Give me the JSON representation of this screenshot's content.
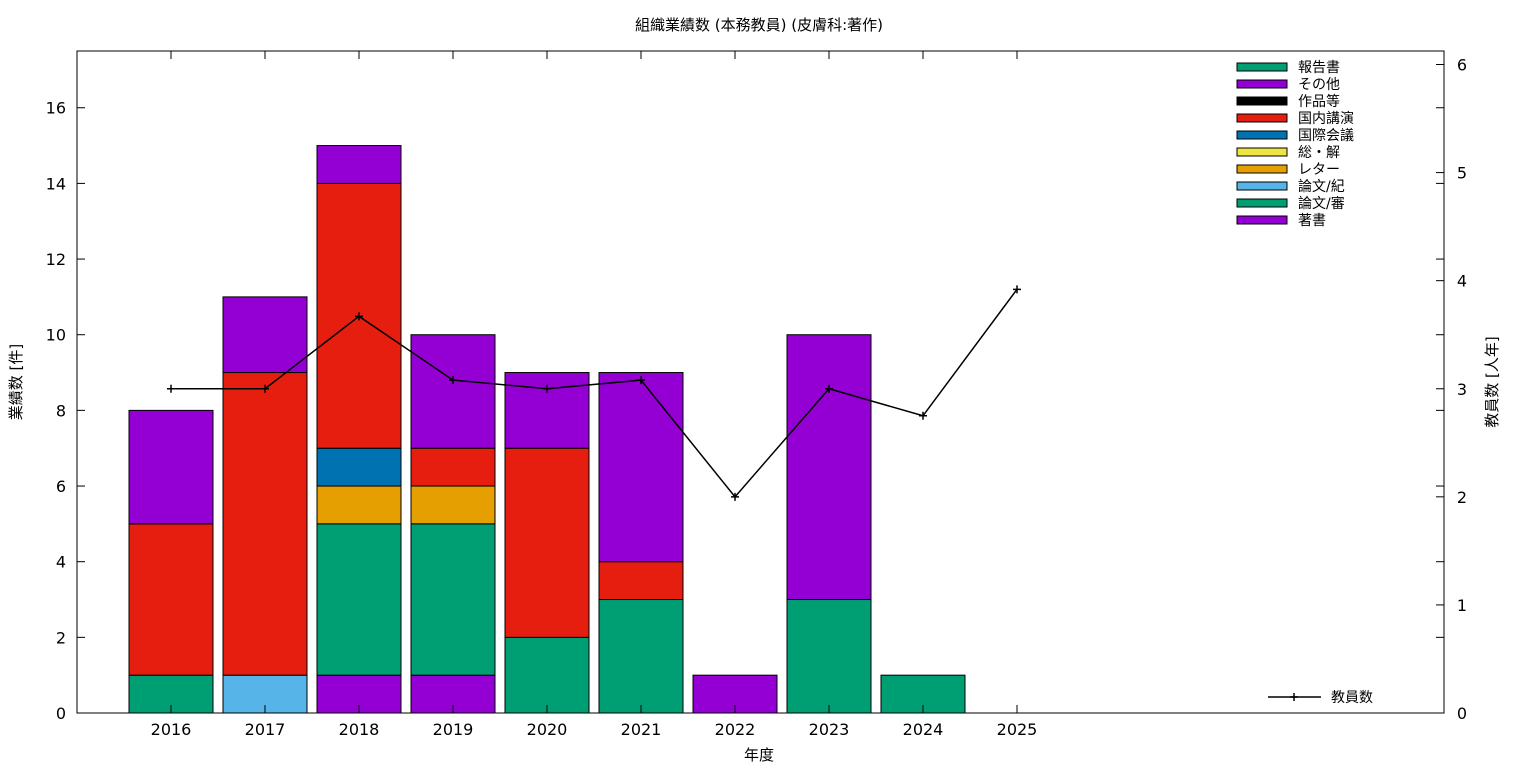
{
  "chart_data": {
    "type": "bar",
    "title": "組織業績数 (本務教員) (皮膚科:著作)",
    "xlabel": "年度",
    "ylabel": "業績数 [件]",
    "y2label": "教員数 [人年]",
    "ylim": [
      0,
      17.5
    ],
    "y2lim": [
      0,
      6.125
    ],
    "yticks": [
      0,
      2,
      4,
      6,
      8,
      10,
      12,
      14,
      16
    ],
    "y2ticks": [
      0,
      1,
      2,
      3,
      4,
      5,
      6
    ],
    "categories": [
      "2016",
      "2017",
      "2018",
      "2019",
      "2020",
      "2021",
      "2022",
      "2023",
      "2024",
      "2025"
    ],
    "stacked": true,
    "grid": false,
    "legend_position": "top-right",
    "series": [
      {
        "name": "著書",
        "color": "#9400d3",
        "values": [
          0,
          0,
          1,
          1,
          0,
          0,
          1,
          0,
          0,
          0
        ]
      },
      {
        "name": "論文/審",
        "color": "#009e73",
        "values": [
          1,
          0,
          4,
          4,
          2,
          3,
          0,
          3,
          1,
          0
        ]
      },
      {
        "name": "論文/紀",
        "color": "#56b4e9",
        "values": [
          0,
          1,
          0,
          0,
          0,
          0,
          0,
          0,
          0,
          0
        ]
      },
      {
        "name": "レター",
        "color": "#e69f00",
        "values": [
          0,
          0,
          1,
          1,
          0,
          0,
          0,
          0,
          0,
          0
        ]
      },
      {
        "name": "総・解",
        "color": "#f0e442",
        "values": [
          0,
          0,
          0,
          0,
          0,
          0,
          0,
          0,
          0,
          0
        ]
      },
      {
        "name": "国際会議",
        "color": "#0072b2",
        "values": [
          0,
          0,
          1,
          0,
          0,
          0,
          0,
          0,
          0,
          0
        ]
      },
      {
        "name": "国内講演",
        "color": "#e51e10",
        "values": [
          4,
          8,
          7,
          1,
          5,
          1,
          0,
          0,
          0,
          0
        ]
      },
      {
        "name": "作品等",
        "color": "#000000",
        "values": [
          0,
          0,
          0,
          0,
          0,
          0,
          0,
          0,
          0,
          0
        ]
      },
      {
        "name": "その他",
        "color": "#9400d3",
        "values": [
          3,
          2,
          1,
          3,
          2,
          5,
          0,
          7,
          0,
          0
        ]
      },
      {
        "name": "報告書",
        "color": "#009e73",
        "values": [
          0,
          0,
          0,
          0,
          0,
          0,
          0,
          0,
          0,
          0
        ]
      }
    ],
    "line_series": {
      "name": "教員数",
      "axis": "y2",
      "color": "#000000",
      "values": [
        3,
        3,
        3.67,
        3.08,
        3,
        3.08,
        2,
        3,
        2.75,
        3.92
      ]
    }
  }
}
